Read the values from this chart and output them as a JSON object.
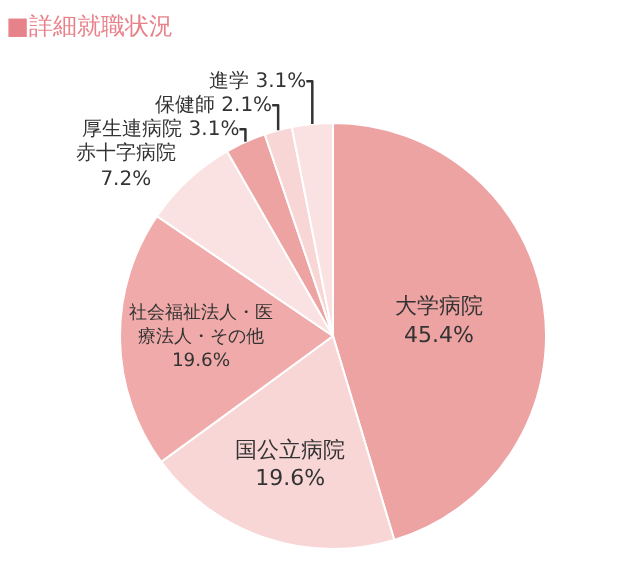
{
  "chart_data": {
    "type": "pie",
    "title": "■詳細就職状況",
    "categories": [
      "大学病院",
      "国公立病院",
      "社会福祉法人・医療法人・その他",
      "赤十字病院",
      "厚生連病院",
      "保健師",
      "進学"
    ],
    "values": [
      45.4,
      19.6,
      19.6,
      7.2,
      3.1,
      2.1,
      3.1
    ],
    "value_labels": [
      "45.4%",
      "19.6%",
      "19.6%",
      "7.2%",
      "3.1%",
      "2.1%",
      "3.1%"
    ],
    "colors": [
      "#eea3a3",
      "#f9d6d6",
      "#f0aaaa",
      "#fbe2e2",
      "#eea3a3",
      "#f9d6d6",
      "#fbe2e2"
    ],
    "legend": false
  }
}
